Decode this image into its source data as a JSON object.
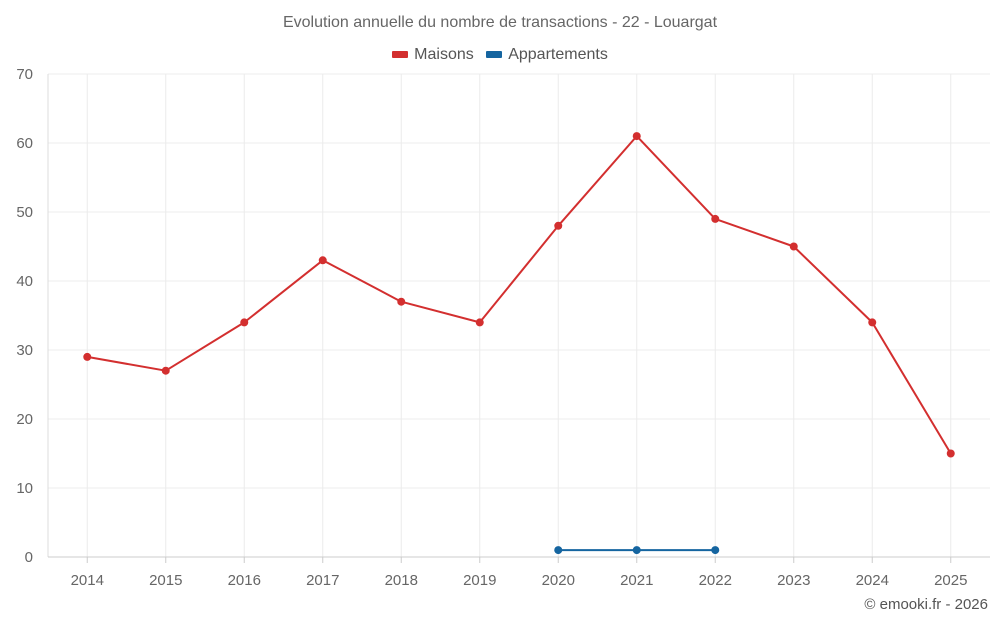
{
  "chart_data": {
    "type": "line",
    "title": "Evolution annuelle du nombre de transactions - 22 - Louargat",
    "categories": [
      "2014",
      "2015",
      "2016",
      "2017",
      "2018",
      "2019",
      "2020",
      "2021",
      "2022",
      "2023",
      "2024",
      "2025"
    ],
    "series": [
      {
        "name": "Maisons",
        "color": "#d32f2f",
        "values": [
          29,
          27,
          34,
          43,
          37,
          34,
          48,
          61,
          49,
          45,
          34,
          15
        ]
      },
      {
        "name": "Appartements",
        "color": "#1565a0",
        "values": [
          null,
          null,
          null,
          null,
          null,
          null,
          1,
          1,
          1,
          null,
          null,
          null
        ]
      }
    ],
    "ylim": [
      0,
      70
    ],
    "yticks": [
      0,
      10,
      20,
      30,
      40,
      50,
      60,
      70
    ],
    "xlabel": "",
    "ylabel": "",
    "grid": true,
    "legend": "top-center"
  },
  "credit": "© emooki.fr - 2026"
}
